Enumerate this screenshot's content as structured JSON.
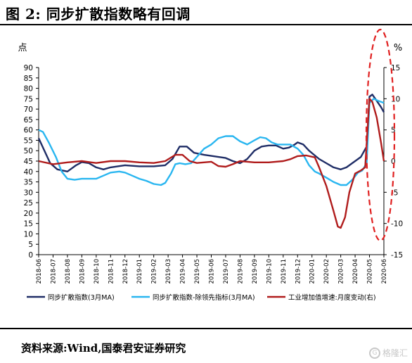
{
  "figure_title": "图 2:  同步扩散指数略有回调",
  "source_text": "资料来源:Wind,国泰君安证券研究",
  "watermark": {
    "icon_glyph": "G",
    "text": "格隆汇"
  },
  "colors": {
    "navy": "#1f2d66",
    "sky": "#29b6f0",
    "red": "#b01c1c",
    "highlight": "#e02020"
  },
  "chart_data": {
    "type": "line",
    "title": "",
    "y_left_label": "点",
    "y_right_label": "%",
    "y_left": {
      "min": 0,
      "max": 90,
      "ticks": [
        "0",
        "5",
        "10",
        "15",
        "20",
        "25",
        "30",
        "35",
        "40",
        "45",
        "50",
        "55",
        "60",
        "65",
        "70",
        "75",
        "80",
        "85",
        "90"
      ]
    },
    "y_right": {
      "min": -15,
      "max": 15,
      "ticks": [
        "-15",
        "-10",
        "-5",
        "0",
        "5",
        "10",
        "15"
      ]
    },
    "x_ticks": [
      "2018-06",
      "2018-07",
      "2018-08",
      "2018-09",
      "2018-10",
      "2018-11",
      "2018-12",
      "2019-01",
      "2019-02",
      "2019-03",
      "2019-04",
      "2019-05",
      "2019-06",
      "2019-07",
      "2019-08",
      "2019-09",
      "2019-10",
      "2019-11",
      "2019-12",
      "2020-01",
      "2020-02",
      "2020-03",
      "2020-04",
      "2020-05",
      "2020-06"
    ],
    "grid": false,
    "legend_position": "bottom",
    "series": [
      {
        "name": "同步扩散指数(3月MA)",
        "axis": "left",
        "color": "#1f2d66",
        "points": [
          [
            0,
            56
          ],
          [
            0.4,
            50
          ],
          [
            0.8,
            44
          ],
          [
            1.3,
            41
          ],
          [
            2,
            40
          ],
          [
            2.6,
            43
          ],
          [
            3,
            44.5
          ],
          [
            3.5,
            44
          ],
          [
            4,
            42
          ],
          [
            4.5,
            41
          ],
          [
            5,
            42
          ],
          [
            6,
            43
          ],
          [
            7,
            42.5
          ],
          [
            8,
            42.5
          ],
          [
            8.8,
            43
          ],
          [
            9.3,
            46
          ],
          [
            9.8,
            52
          ],
          [
            10.3,
            52
          ],
          [
            10.8,
            49
          ],
          [
            11.5,
            48
          ],
          [
            12.5,
            47
          ],
          [
            13,
            46.5
          ],
          [
            13.5,
            45
          ],
          [
            14,
            44
          ],
          [
            14.5,
            46
          ],
          [
            15,
            50
          ],
          [
            15.5,
            52
          ],
          [
            16,
            52.5
          ],
          [
            16.5,
            52.5
          ],
          [
            17,
            51
          ],
          [
            17.4,
            51.5
          ],
          [
            17.8,
            53
          ],
          [
            18,
            54
          ],
          [
            18.4,
            53
          ],
          [
            18.8,
            50
          ],
          [
            19.5,
            46
          ],
          [
            20,
            44
          ],
          [
            20.5,
            42
          ],
          [
            21,
            41
          ],
          [
            21.4,
            42
          ],
          [
            22,
            45
          ],
          [
            22.4,
            47
          ],
          [
            22.8,
            52
          ],
          [
            23,
            76
          ],
          [
            23.2,
            77
          ],
          [
            23.5,
            74
          ],
          [
            23.8,
            71
          ],
          [
            24,
            68.5
          ]
        ]
      },
      {
        "name": "同步扩散指数-除领先指标(3月MA)",
        "axis": "left",
        "color": "#29b6f0",
        "points": [
          [
            0,
            60
          ],
          [
            0.3,
            59
          ],
          [
            0.7,
            54
          ],
          [
            1.2,
            47
          ],
          [
            1.6,
            40
          ],
          [
            2,
            36.5
          ],
          [
            2.5,
            36
          ],
          [
            3,
            36.5
          ],
          [
            3.5,
            36.5
          ],
          [
            4,
            36.5
          ],
          [
            4.5,
            38
          ],
          [
            5,
            39.5
          ],
          [
            5.6,
            40
          ],
          [
            6,
            39.5
          ],
          [
            6.5,
            38
          ],
          [
            7,
            36.5
          ],
          [
            7.5,
            35.5
          ],
          [
            8,
            34
          ],
          [
            8.5,
            33.5
          ],
          [
            8.8,
            34.5
          ],
          [
            9.2,
            39
          ],
          [
            9.5,
            43.5
          ],
          [
            9.8,
            44
          ],
          [
            10.2,
            43.5
          ],
          [
            10.6,
            44
          ],
          [
            11,
            47
          ],
          [
            11.5,
            51
          ],
          [
            12,
            53
          ],
          [
            12.5,
            56
          ],
          [
            13,
            57
          ],
          [
            13.5,
            57
          ],
          [
            14,
            54.5
          ],
          [
            14.5,
            53
          ],
          [
            15,
            55
          ],
          [
            15.4,
            56.5
          ],
          [
            15.8,
            56
          ],
          [
            16.2,
            54
          ],
          [
            16.6,
            53
          ],
          [
            17,
            53
          ],
          [
            17.5,
            53
          ],
          [
            18,
            51
          ],
          [
            18.4,
            48
          ],
          [
            18.8,
            43
          ],
          [
            19.2,
            40
          ],
          [
            19.5,
            39
          ],
          [
            20,
            37
          ],
          [
            20.5,
            35
          ],
          [
            21,
            33.5
          ],
          [
            21.4,
            33.5
          ],
          [
            21.8,
            36
          ],
          [
            22.2,
            39.5
          ],
          [
            22.5,
            40.5
          ],
          [
            22.8,
            44
          ],
          [
            23,
            73
          ],
          [
            23.3,
            75
          ],
          [
            23.6,
            74
          ],
          [
            24,
            73
          ]
        ]
      },
      {
        "name": "工业增加值增速:月度变动(右)",
        "axis": "right",
        "color": "#b01c1c",
        "points": [
          [
            0,
            0
          ],
          [
            1,
            -0.5
          ],
          [
            2,
            -0.2
          ],
          [
            3,
            0
          ],
          [
            4,
            -0.3
          ],
          [
            5,
            0
          ],
          [
            6,
            0
          ],
          [
            7,
            -0.2
          ],
          [
            8,
            -0.3
          ],
          [
            8.8,
            0
          ],
          [
            9.5,
            1
          ],
          [
            10,
            1
          ],
          [
            10.5,
            0
          ],
          [
            11,
            -0.3
          ],
          [
            12,
            -0.1
          ],
          [
            12.5,
            -0.8
          ],
          [
            13,
            -0.9
          ],
          [
            13.5,
            -0.5
          ],
          [
            14,
            0
          ],
          [
            15,
            -0.2
          ],
          [
            16,
            -0.2
          ],
          [
            17,
            0
          ],
          [
            17.5,
            0.3
          ],
          [
            18,
            0.8
          ],
          [
            18.6,
            0.9
          ],
          [
            19.2,
            0.6
          ],
          [
            19.5,
            -1
          ],
          [
            20,
            -4
          ],
          [
            20.5,
            -8
          ],
          [
            20.8,
            -10.5
          ],
          [
            21,
            -10.7
          ],
          [
            21.3,
            -9
          ],
          [
            21.6,
            -5
          ],
          [
            22,
            -2
          ],
          [
            22.4,
            -1.5
          ],
          [
            22.7,
            -1
          ],
          [
            23,
            10
          ],
          [
            23.2,
            9.5
          ],
          [
            23.5,
            7
          ],
          [
            23.8,
            3
          ],
          [
            24,
            0
          ]
        ]
      }
    ],
    "annotation": {
      "type": "dashed-ellipse",
      "target": "2020-04 to 2020-06 surge",
      "color": "#e02020"
    }
  }
}
